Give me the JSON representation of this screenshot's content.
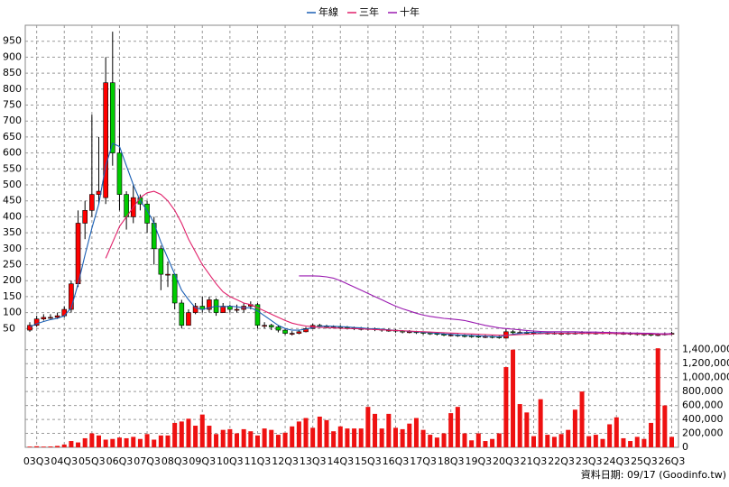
{
  "chart_data": {
    "type": "candlestick",
    "categories": [
      null,
      "03Q3",
      null,
      null,
      null,
      "04Q3",
      null,
      null,
      null,
      "05Q3",
      null,
      null,
      null,
      "06Q3",
      null,
      null,
      null,
      "07Q3",
      null,
      null,
      null,
      "08Q3",
      null,
      null,
      null,
      "09Q3",
      null,
      null,
      null,
      "10Q3",
      null,
      null,
      null,
      "11Q3",
      null,
      null,
      null,
      "12Q3",
      null,
      null,
      null,
      "13Q3",
      null,
      null,
      null,
      "14Q3",
      null,
      null,
      null,
      "15Q3",
      null,
      null,
      null,
      "16Q3",
      null,
      null,
      null,
      "17Q3",
      null,
      null,
      null,
      "18Q3",
      null,
      null,
      null,
      "19Q3",
      null,
      null,
      null,
      "20Q3",
      null,
      null,
      null,
      "21Q3",
      null,
      null,
      null,
      "22Q3",
      null,
      null,
      null,
      "23Q3",
      null,
      null,
      null,
      "24Q3",
      null,
      null,
      null,
      "25Q3",
      null,
      null,
      null,
      "26Q3"
    ],
    "candles": {
      "up_color": "#ff0000",
      "down_color": "#00cc00",
      "open": [
        45,
        60,
        80,
        85,
        85,
        90,
        110,
        190,
        380,
        420,
        470,
        460,
        820,
        600,
        470,
        400,
        460,
        440,
        380,
        300,
        220,
        220,
        130,
        60,
        100,
        120,
        110,
        140,
        100,
        120,
        110,
        110,
        120,
        125,
        60,
        60,
        55,
        45,
        35,
        35,
        40,
        50,
        60,
        58,
        55,
        55,
        54,
        52,
        50,
        50,
        50,
        48,
        45,
        45,
        42,
        40,
        40,
        38,
        36,
        35,
        32,
        30,
        30,
        28,
        27,
        26,
        25,
        25,
        24,
        20,
        40,
        38,
        38,
        37,
        37,
        36,
        36,
        35,
        35,
        36,
        36,
        37,
        36,
        36,
        37,
        36,
        35,
        35,
        34,
        33,
        32,
        30,
        31,
        33
      ],
      "high": [
        70,
        90,
        95,
        95,
        100,
        120,
        200,
        420,
        450,
        720,
        650,
        900,
        980,
        800,
        480,
        500,
        470,
        450,
        400,
        310,
        260,
        220,
        140,
        110,
        130,
        150,
        150,
        145,
        130,
        125,
        125,
        130,
        135,
        130,
        70,
        65,
        60,
        50,
        42,
        45,
        55,
        65,
        65,
        62,
        60,
        60,
        58,
        56,
        55,
        55,
        53,
        50,
        50,
        48,
        45,
        45,
        43,
        41,
        40,
        38,
        35,
        35,
        33,
        32,
        31,
        30,
        30,
        29,
        28,
        50,
        45,
        44,
        42,
        42,
        41,
        41,
        40,
        40,
        41,
        41,
        42,
        41,
        41,
        42,
        41,
        40,
        40,
        39,
        38,
        37,
        36,
        36,
        38,
        40
      ],
      "low": [
        40,
        55,
        75,
        80,
        80,
        85,
        100,
        180,
        330,
        400,
        440,
        440,
        560,
        420,
        360,
        380,
        420,
        350,
        250,
        170,
        180,
        110,
        50,
        80,
        95,
        100,
        100,
        90,
        100,
        100,
        100,
        100,
        110,
        50,
        50,
        45,
        38,
        30,
        28,
        32,
        38,
        50,
        52,
        50,
        50,
        48,
        47,
        45,
        44,
        44,
        42,
        40,
        40,
        37,
        35,
        35,
        33,
        31,
        30,
        28,
        26,
        25,
        24,
        22,
        21,
        20,
        20,
        19,
        18,
        18,
        32,
        33,
        33,
        32,
        32,
        31,
        31,
        30,
        30,
        31,
        31,
        31,
        31,
        32,
        31,
        30,
        30,
        29,
        28,
        27,
        26,
        26,
        28,
        30
      ],
      "close": [
        60,
        80,
        85,
        85,
        90,
        110,
        190,
        380,
        420,
        470,
        480,
        820,
        600,
        470,
        400,
        460,
        440,
        380,
        300,
        220,
        220,
        130,
        60,
        100,
        120,
        110,
        140,
        100,
        120,
        110,
        110,
        120,
        125,
        60,
        60,
        55,
        45,
        35,
        35,
        40,
        50,
        60,
        58,
        55,
        55,
        54,
        52,
        50,
        50,
        50,
        48,
        45,
        45,
        42,
        40,
        40,
        38,
        36,
        35,
        32,
        30,
        30,
        28,
        27,
        26,
        25,
        25,
        24,
        22,
        40,
        38,
        38,
        37,
        37,
        36,
        36,
        35,
        35,
        36,
        36,
        37,
        36,
        36,
        37,
        36,
        35,
        35,
        34,
        33,
        32,
        30,
        31,
        33,
        35
      ]
    },
    "series": [
      {
        "name": "年線",
        "color": "#1a5fb4",
        "values": [
          55,
          65,
          72,
          78,
          82,
          90,
          115,
          190,
          280,
          365,
          440,
          560,
          630,
          620,
          560,
          500,
          450,
          420,
          380,
          320,
          270,
          220,
          170,
          140,
          115,
          110,
          115,
          120,
          118,
          120,
          118,
          115,
          115,
          105,
          90,
          75,
          60,
          50,
          45,
          45,
          48,
          53,
          57,
          58,
          57,
          56,
          55,
          53,
          52,
          50,
          49,
          48,
          46,
          44,
          43,
          41,
          40,
          38,
          37,
          35,
          33,
          32,
          30,
          29,
          28,
          27,
          26,
          25,
          24,
          28,
          32,
          35,
          38,
          38,
          37,
          37,
          36,
          36,
          36,
          36,
          36,
          36,
          36,
          36,
          36,
          36,
          36,
          35,
          35,
          34,
          33,
          32,
          32,
          32
        ]
      },
      {
        "name": "三年",
        "color": "#e0206a",
        "values": [
          null,
          null,
          null,
          null,
          null,
          null,
          null,
          null,
          null,
          null,
          null,
          270,
          320,
          370,
          400,
          430,
          460,
          475,
          480,
          470,
          450,
          420,
          380,
          330,
          290,
          250,
          220,
          190,
          165,
          150,
          140,
          130,
          125,
          115,
          105,
          95,
          85,
          75,
          67,
          62,
          58,
          56,
          54,
          53,
          52,
          51,
          50,
          50,
          49,
          48,
          47,
          46,
          45,
          44,
          43,
          42,
          41,
          40,
          39,
          38,
          37,
          36,
          35,
          34,
          33,
          32,
          31,
          30,
          29,
          29,
          30,
          31,
          32,
          33,
          34,
          35,
          35,
          35,
          35,
          35,
          35,
          35,
          35,
          35,
          35,
          34,
          34,
          34,
          33,
          33,
          33,
          32,
          32,
          32
        ]
      },
      {
        "name": "十年",
        "color": "#9a1ab0",
        "values": [
          null,
          null,
          null,
          null,
          null,
          null,
          null,
          null,
          null,
          null,
          null,
          null,
          null,
          null,
          null,
          null,
          null,
          null,
          null,
          null,
          null,
          null,
          null,
          null,
          null,
          null,
          null,
          null,
          null,
          null,
          null,
          null,
          null,
          null,
          null,
          null,
          null,
          null,
          null,
          215,
          215,
          215,
          214,
          212,
          208,
          200,
          190,
          180,
          170,
          160,
          150,
          140,
          130,
          120,
          112,
          105,
          98,
          92,
          88,
          85,
          82,
          80,
          78,
          75,
          70,
          65,
          60,
          56,
          52,
          50,
          48,
          46,
          44,
          42,
          41,
          40,
          40,
          40,
          40,
          40,
          39,
          39,
          39,
          38,
          38,
          37,
          37,
          36,
          36,
          35,
          35,
          34,
          34,
          34
        ]
      }
    ],
    "ylim": [
      0,
      1000
    ],
    "yticks": [
      50,
      100,
      150,
      200,
      250,
      300,
      350,
      400,
      450,
      500,
      550,
      600,
      650,
      700,
      750,
      800,
      850,
      900,
      950
    ],
    "volume": {
      "color": "#ee1111",
      "values": [
        10000,
        15000,
        10000,
        12000,
        20000,
        40000,
        90000,
        70000,
        130000,
        200000,
        170000,
        110000,
        120000,
        140000,
        130000,
        150000,
        120000,
        190000,
        110000,
        170000,
        170000,
        350000,
        370000,
        410000,
        310000,
        470000,
        310000,
        190000,
        250000,
        260000,
        200000,
        260000,
        230000,
        170000,
        270000,
        250000,
        180000,
        210000,
        300000,
        370000,
        420000,
        280000,
        440000,
        390000,
        230000,
        300000,
        270000,
        270000,
        270000,
        580000,
        480000,
        270000,
        480000,
        280000,
        260000,
        340000,
        420000,
        250000,
        180000,
        140000,
        200000,
        490000,
        580000,
        200000,
        100000,
        200000,
        90000,
        120000,
        200000,
        1150000,
        1400000,
        620000,
        500000,
        160000,
        690000,
        180000,
        150000,
        190000,
        250000,
        540000,
        800000,
        160000,
        180000,
        120000,
        330000,
        430000,
        130000,
        90000,
        150000,
        120000,
        350000,
        1420000,
        600000,
        150000
      ]
    },
    "y2lim": [
      0,
      1500000
    ],
    "y2ticks": [
      0,
      {
        "value": 200000,
        "label": "200,000"
      },
      {
        "value": 400000,
        "label": "400,000"
      },
      {
        "value": 600000,
        "label": "600,000"
      },
      {
        "value": 800000,
        "label": "800,000"
      },
      {
        "value": 1000000,
        "label": "1,000,000"
      },
      {
        "value": 1200000,
        "label": "1,200,000"
      },
      {
        "value": 1400000,
        "label": "1,400,000"
      }
    ],
    "grid": true,
    "legend": "top",
    "footer": "資料日期: 09/17  (Goodinfo.tw)"
  }
}
